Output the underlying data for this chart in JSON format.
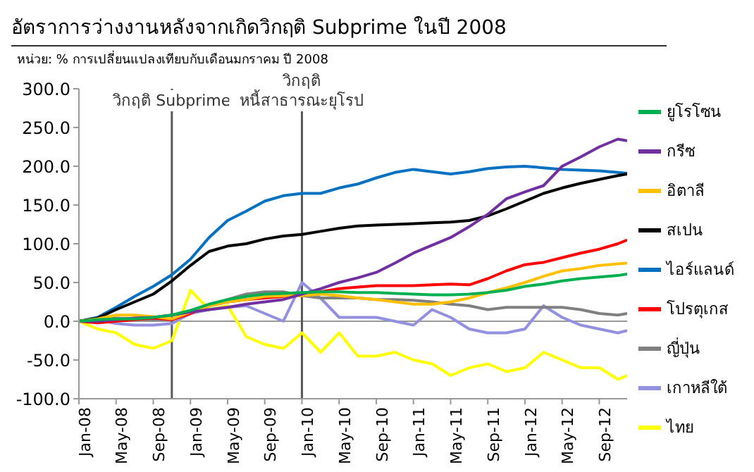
{
  "chart_data": {
    "type": "line",
    "title": "อัตราการว่างงานหลังจากเกิดวิกฤติ Subprime ในปี 2008",
    "subtitle": "หน่วย: % การเปลี่ยนแปลงเทียบกับเดือนมกราคม ปี 2008",
    "x": [
      "2008-01",
      "2008-03",
      "2008-05",
      "2008-07",
      "2008-09",
      "2008-11",
      "2009-01",
      "2009-03",
      "2009-05",
      "2009-07",
      "2009-09",
      "2009-11",
      "2010-01",
      "2010-03",
      "2010-05",
      "2010-07",
      "2010-09",
      "2010-11",
      "2011-01",
      "2011-03",
      "2011-05",
      "2011-07",
      "2011-09",
      "2011-11",
      "2012-01",
      "2012-03",
      "2012-05",
      "2012-07",
      "2012-09",
      "2012-11",
      "2012-12"
    ],
    "xlim": [
      "2008-01",
      "2012-12"
    ],
    "xticks": [
      {
        "value": "2008-01",
        "label": "Jan-08"
      },
      {
        "value": "2008-05",
        "label": "May-08"
      },
      {
        "value": "2008-09",
        "label": "Sep-08"
      },
      {
        "value": "2009-01",
        "label": "Jan-09"
      },
      {
        "value": "2009-05",
        "label": "May-09"
      },
      {
        "value": "2009-09",
        "label": "Sep-09"
      },
      {
        "value": "2010-01",
        "label": "Jan-10"
      },
      {
        "value": "2010-05",
        "label": "May-10"
      },
      {
        "value": "2010-09",
        "label": "Sep-10"
      },
      {
        "value": "2011-01",
        "label": "Jan-11"
      },
      {
        "value": "2011-05",
        "label": "May-11"
      },
      {
        "value": "2011-09",
        "label": "Sep-11"
      },
      {
        "value": "2012-01",
        "label": "Jan-12"
      },
      {
        "value": "2012-05",
        "label": "May-12"
      },
      {
        "value": "2012-09",
        "label": "Sep-12"
      }
    ],
    "ylim": [
      -100,
      300
    ],
    "yticks": [
      {
        "value": -100,
        "label": "-100.0"
      },
      {
        "value": -50,
        "label": "-50.0"
      },
      {
        "value": 0,
        "label": "0.0"
      },
      {
        "value": 50,
        "label": "50.0"
      },
      {
        "value": 100,
        "label": "100.0"
      },
      {
        "value": 150,
        "label": "150.0"
      },
      {
        "value": 200,
        "label": "200.0"
      },
      {
        "value": 250,
        "label": "250.0"
      },
      {
        "value": 300,
        "label": "300.0"
      }
    ],
    "grid": false,
    "legend": "right",
    "marker": "none",
    "line_style": "solid",
    "ref_lines": [
      {
        "axis": "x",
        "value": "2008-11",
        "label": "วิกฤติ Subprime",
        "color": "#595959"
      },
      {
        "axis": "x",
        "value": "2010-01",
        "label": "วิกฤติ\nหนี้สาธารณะยุโรป",
        "color": "#595959"
      }
    ],
    "series": [
      {
        "name": "ยูโรโซน",
        "color": "#00b050",
        "values": [
          0,
          2,
          3,
          3,
          5,
          8,
          14,
          22,
          28,
          32,
          35,
          36,
          37,
          38,
          38,
          37,
          37,
          36,
          35,
          34,
          34,
          35,
          37,
          40,
          45,
          48,
          52,
          55,
          57,
          59,
          61
        ]
      },
      {
        "name": "กรีซ",
        "color": "#7030a0",
        "values": [
          0,
          0,
          2,
          4,
          5,
          8,
          12,
          15,
          18,
          22,
          25,
          28,
          35,
          42,
          50,
          56,
          63,
          75,
          88,
          98,
          108,
          122,
          138,
          158,
          167,
          175,
          200,
          212,
          225,
          235,
          233
        ]
      },
      {
        "name": "อิตาลี",
        "color": "#ffc000",
        "values": [
          0,
          3,
          8,
          8,
          6,
          3,
          12,
          20,
          25,
          28,
          32,
          33,
          33,
          35,
          33,
          30,
          28,
          25,
          22,
          22,
          25,
          30,
          37,
          43,
          50,
          58,
          65,
          68,
          72,
          74,
          75
        ]
      },
      {
        "name": "สเปน",
        "color": "#000000",
        "values": [
          0,
          4,
          15,
          25,
          35,
          52,
          72,
          90,
          97,
          100,
          106,
          110,
          112,
          116,
          120,
          123,
          124,
          125,
          126,
          127,
          128,
          130,
          136,
          145,
          155,
          165,
          172,
          178,
          183,
          188,
          190
        ]
      },
      {
        "name": "ไอร์แลนด์",
        "color": "#0070c0",
        "values": [
          0,
          5,
          18,
          32,
          45,
          60,
          80,
          108,
          130,
          142,
          155,
          162,
          165,
          165,
          172,
          177,
          185,
          192,
          196,
          193,
          190,
          193,
          197,
          199,
          200,
          198,
          196,
          195,
          194,
          192,
          191
        ]
      },
      {
        "name": "โปรตุเกส",
        "color": "#ff0000",
        "values": [
          0,
          -2,
          0,
          2,
          4,
          2,
          10,
          20,
          25,
          28,
          30,
          32,
          35,
          38,
          42,
          44,
          46,
          46,
          46,
          47,
          48,
          47,
          55,
          65,
          73,
          76,
          82,
          88,
          93,
          100,
          105
        ]
      },
      {
        "name": "ญี่ปุ่น",
        "color": "#808080",
        "values": [
          0,
          3,
          4,
          3,
          2,
          3,
          10,
          20,
          28,
          35,
          38,
          38,
          33,
          30,
          30,
          30,
          28,
          28,
          27,
          25,
          22,
          20,
          15,
          18,
          18,
          18,
          18,
          15,
          10,
          8,
          10
        ]
      },
      {
        "name": "เกาหลีใต้",
        "color": "#9490e0",
        "values": [
          0,
          2,
          -3,
          -5,
          -5,
          -3,
          10,
          15,
          18,
          20,
          10,
          0,
          50,
          30,
          5,
          5,
          5,
          0,
          -5,
          15,
          5,
          -10,
          -15,
          -15,
          -10,
          20,
          5,
          -5,
          -10,
          -15,
          -12
        ]
      },
      {
        "name": "ไทย",
        "color": "#ffff00",
        "values": [
          0,
          -10,
          -15,
          -30,
          -35,
          -25,
          40,
          15,
          20,
          -20,
          -30,
          -35,
          -15,
          -40,
          -15,
          -45,
          -45,
          -40,
          -50,
          -55,
          -70,
          -60,
          -55,
          -65,
          -60,
          -40,
          -50,
          -60,
          -60,
          -75,
          -70
        ]
      }
    ]
  }
}
